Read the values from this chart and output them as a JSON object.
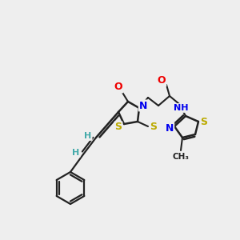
{
  "background_color": "#eeeeee",
  "bond_color": "#222222",
  "atom_colors": {
    "C": "#222222",
    "N": "#0000ee",
    "O": "#ee0000",
    "S": "#bbaa00",
    "H": "#44aaaa"
  },
  "figsize": [
    3.0,
    3.0
  ],
  "dpi": 100
}
